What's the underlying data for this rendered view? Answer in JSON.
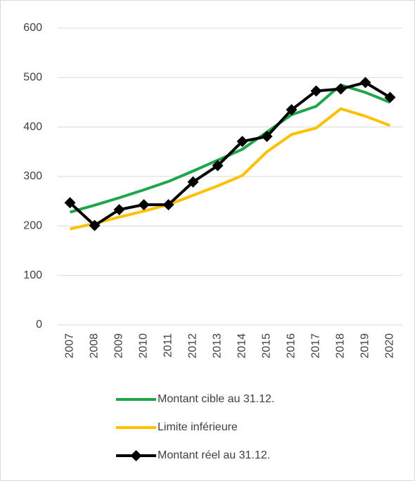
{
  "chart_data": {
    "type": "line",
    "categories": [
      "2007",
      "2008",
      "2009",
      "2010",
      "2011",
      "2012",
      "2013",
      "2014",
      "2015",
      "2016",
      "2017",
      "2018",
      "2019",
      "2020"
    ],
    "series": [
      {
        "name": "Montant cible au 31.12.",
        "color": "#1fa64a",
        "values": [
          228,
          242,
          257,
          273,
          290,
          311,
          333,
          355,
          390,
          425,
          442,
          485,
          470,
          450
        ]
      },
      {
        "name": "Limite inférieure",
        "color": "#ffc000",
        "values": [
          194,
          205,
          218,
          230,
          243,
          262,
          281,
          302,
          350,
          385,
          398,
          437,
          422,
          403
        ]
      },
      {
        "name": "Montant réel au 31.12.",
        "color": "#000000",
        "marker": "diamond",
        "values": [
          247,
          201,
          233,
          243,
          243,
          289,
          322,
          371,
          381,
          435,
          473,
          477,
          490,
          460
        ]
      }
    ],
    "ylim": [
      0,
      600
    ],
    "yticks": [
      0,
      100,
      200,
      300,
      400,
      500,
      600
    ],
    "grid": true,
    "legend": "bottom"
  }
}
